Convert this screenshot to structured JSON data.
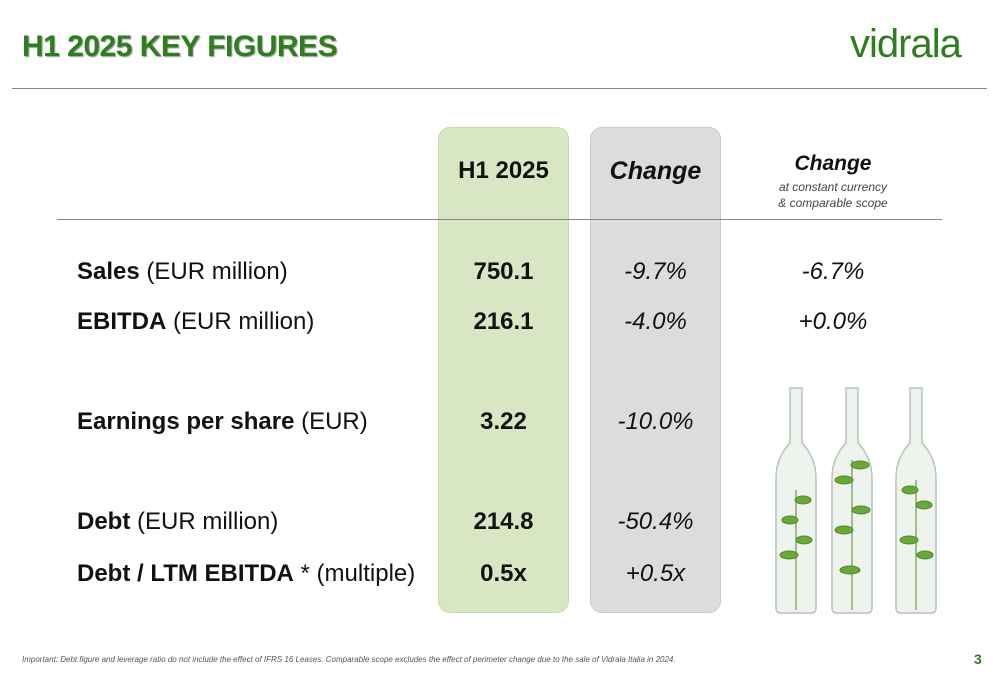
{
  "header": {
    "title": "H1 2025 KEY FIGURES",
    "logo": "vidrala"
  },
  "table": {
    "columns": {
      "h1": "H1 2025",
      "change": "Change",
      "change_cc": {
        "title": "Change",
        "note_lines": [
          "at constant currency",
          "& comparable scope"
        ]
      }
    },
    "rows": [
      {
        "label_bold": "Sales",
        "label_rest": "(EUR million)",
        "h1": "750.1",
        "change": "-9.7%",
        "change_cc": "-6.7%"
      },
      {
        "label_bold": "EBITDA",
        "label_rest": "(EUR million)",
        "h1": "216.1",
        "change": "-4.0%",
        "change_cc": "+0.0%"
      },
      {
        "label_bold": "Earnings per share",
        "label_rest": "(EUR)",
        "h1": "3.22",
        "change": "-10.0%"
      },
      {
        "label_bold": "Debt",
        "label_rest": "(EUR million)",
        "h1": "214.8",
        "change": "-50.4%"
      },
      {
        "label_bold": "Debt / LTM EBITDA",
        "label_rest": "* (multiple)",
        "h1": "0.5x",
        "change": "+0.5x"
      }
    ]
  },
  "footer": {
    "note": "Important: Debt figure and leverage ratio do not include the effect of IFRS 16 Leases. Comparable scope excludes the effect of perimeter change due to the sale of Vidrala Italia in 2024.",
    "page": "3"
  }
}
